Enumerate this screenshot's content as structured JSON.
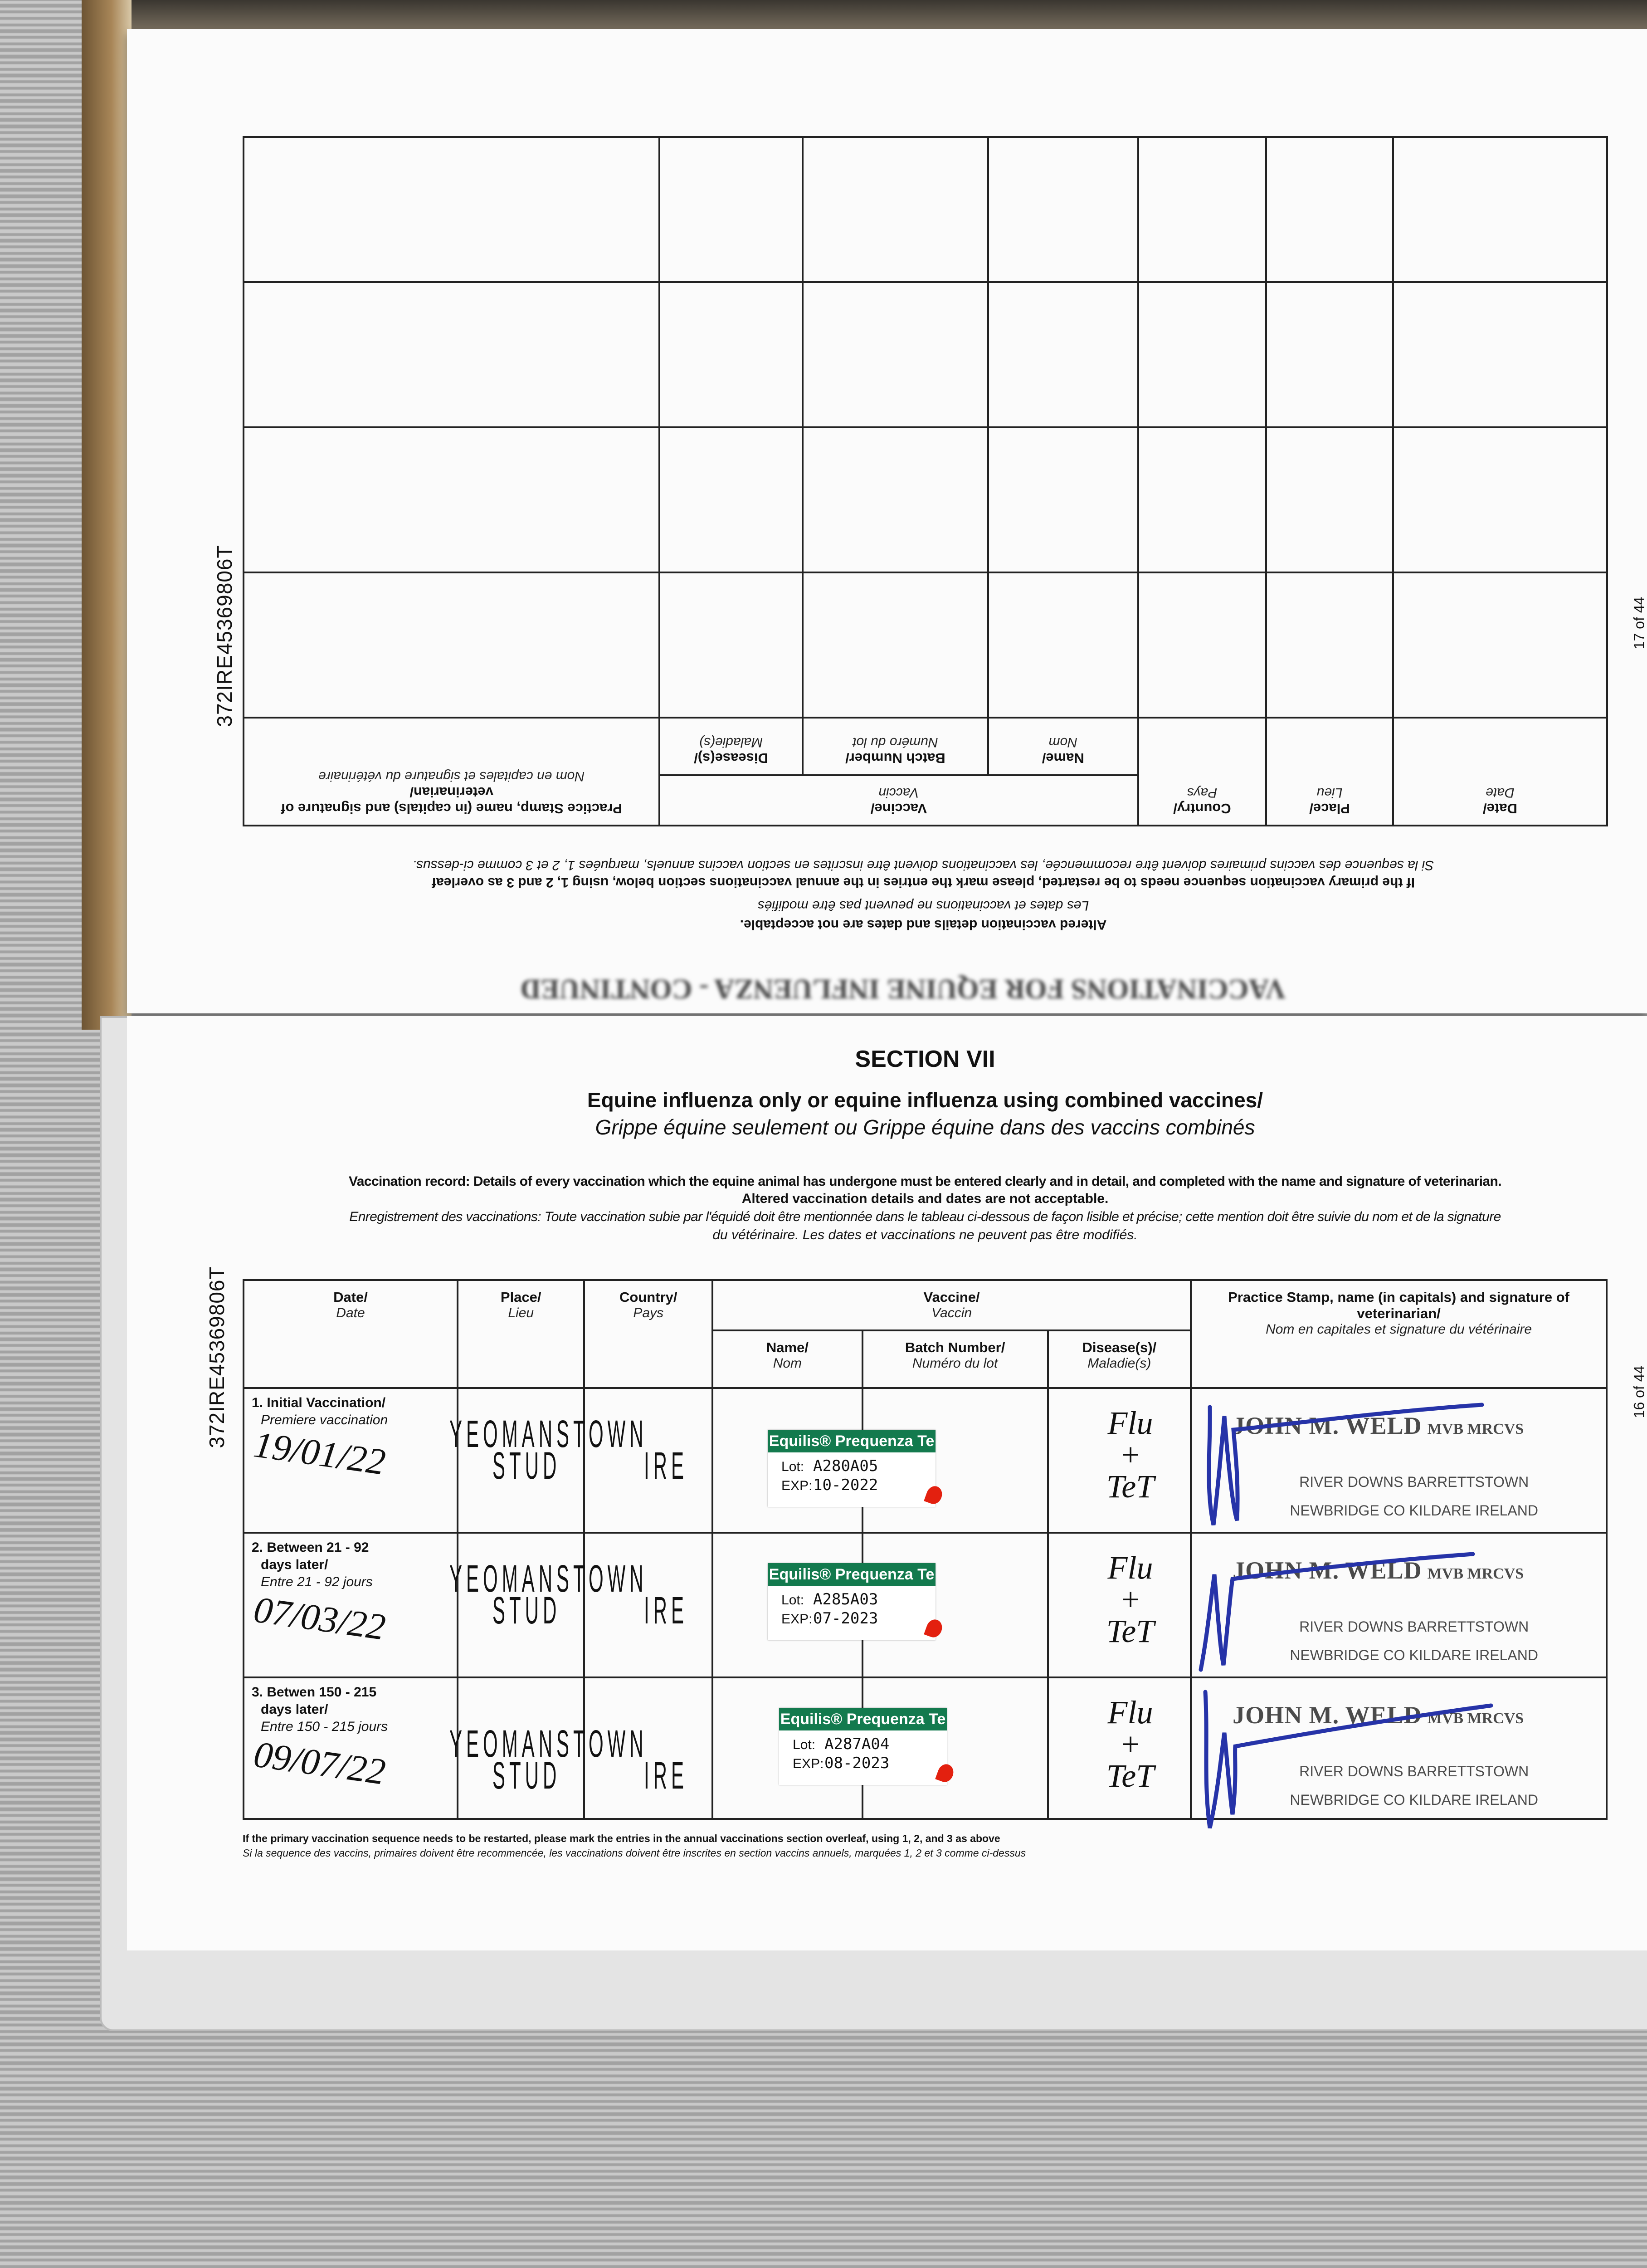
{
  "upper_page": {
    "page_id": "372IRE45369806T",
    "page_number": "17 of 44",
    "running_header": "VACCINATIONS FOR EQUINE INFLUENZA - CONTINUED",
    "notes": [
      "Altered vaccination details and dates are not acceptable.",
      "Les dates et vaccinations ne peuvent pas être modifiés",
      "If the primary vaccination sequence needs to be restarted, please mark the entries in the annual vaccinations section below, using 1, 2 and 3 as overleaf",
      "Si la sequence des vaccins primaires doivent être recommencée, les vaccinations doivent être inscrites en section vaccins annuels, marquées 1, 2 et 3 comme ci-dessus."
    ],
    "headers": {
      "date": "Date/",
      "date_fr": "Date",
      "place": "Place/",
      "place_fr": "Lieu",
      "country": "Country/",
      "country_fr": "Pays",
      "vaccine": "Vaccine/",
      "vaccine_fr": "Vaccin",
      "name": "Name/",
      "name_fr": "Nom",
      "batch": "Batch Number/",
      "batch_fr": "Numéro du lot",
      "disease": "Disease(s)/",
      "disease_fr": "Maladie(s)",
      "stamp": "Practice Stamp, name (in capitals) and signature of veterinarian/",
      "stamp_fr": "Nom en capitales et signature du vétérinaire"
    },
    "empty_rows": 4
  },
  "lower_page": {
    "page_id": "372IRE45369806T",
    "page_number": "16 of 44",
    "section": "SECTION VII",
    "title": "Equine influenza only or equine influenza using combined vaccines/",
    "subtitle": "Grippe équine seulement ou Grippe équine dans des vaccins combinés",
    "instructions": [
      "Vaccination record: Details of every vaccination which the equine animal has undergone must be entered clearly and in detail, and completed with the name and signature of veterinarian.",
      "Altered vaccination details and dates are not acceptable.",
      "Enregistrement des vaccinations: Toute vaccination subie par l'équidé doit être mentionnée dans le tableau ci-dessous de façon lisible et précise; cette mention doit être suivie du nom et de la signature",
      "du vétérinaire. Les dates et vaccinations ne peuvent pas être modifiés."
    ],
    "headers": {
      "date": "Date/",
      "date_fr": "Date",
      "place": "Place/",
      "place_fr": "Lieu",
      "country": "Country/",
      "country_fr": "Pays",
      "vaccine": "Vaccine/",
      "vaccine_fr": "Vaccin",
      "name": "Name/",
      "name_fr": "Nom",
      "batch": "Batch Number/",
      "batch_fr": "Numéro du lot",
      "disease": "Disease(s)/",
      "disease_fr": "Maladie(s)",
      "stamp": "Practice Stamp, name (in capitals) and signature of veterinarian/",
      "stamp_fr": "Nom en capitales et signature du vétérinaire"
    },
    "rows": [
      {
        "label": "1. Initial Vaccination/",
        "label2": "",
        "label_fr": "Premiere vaccination",
        "date": "19/01/22",
        "place1": "YEOMANSTOWN",
        "place2": "STUD",
        "country": "IRE",
        "brand": "Equilis® Prequenza Te",
        "lot_label": "Lot:",
        "lot": "A280A05",
        "exp_label": "EXP:",
        "exp": "10-2022",
        "disease1": "Flu",
        "disease2": "+",
        "disease3": "TeT",
        "vet_name": "JOHN M. WELD",
        "vet_quals": "MVB MRCVS",
        "vet_addr1": "RIVER DOWNS BARRETTSTOWN",
        "vet_addr2": "NEWBRIDGE CO KILDARE IRELAND"
      },
      {
        "label": "2. Between 21 - 92",
        "label2": "days later/",
        "label_fr": "Entre 21 - 92 jours",
        "date": "07/03/22",
        "place1": "YEOMANSTOWN",
        "place2": "STUD",
        "country": "IRE",
        "brand": "Equilis® Prequenza Te",
        "lot_label": "Lot:",
        "lot": "A285A03",
        "exp_label": "EXP:",
        "exp": "07-2023",
        "disease1": "Flu",
        "disease2": "+",
        "disease3": "TeT",
        "vet_name": "JOHN M. WELD",
        "vet_quals": "MVB MRCVS",
        "vet_addr1": "RIVER DOWNS BARRETTSTOWN",
        "vet_addr2": "NEWBRIDGE CO KILDARE IRELAND"
      },
      {
        "label": "3. Betwen 150 - 215",
        "label2": "days later/",
        "label_fr": "Entre 150 - 215 jours",
        "date": "09/07/22",
        "place1": "YEOMANSTOWN",
        "place2": "STUD",
        "country": "IRE",
        "brand": "Equilis® Prequenza Te",
        "lot_label": "Lot:",
        "lot": "A287A04",
        "exp_label": "EXP:",
        "exp": "08-2023",
        "disease1": "Flu",
        "disease2": "+",
        "disease3": "TeT",
        "vet_name": "JOHN M. WELD",
        "vet_quals": "MVB MRCVS",
        "vet_addr1": "RIVER DOWNS BARRETTSTOWN",
        "vet_addr2": "NEWBRIDGE CO KILDARE IRELAND"
      }
    ],
    "footnote": [
      "If the primary vaccination sequence needs to be restarted, please mark the entries in the annual vaccinations section overleaf, using 1, 2, and 3 as above",
      "Si la sequence des vaccins, primaires doivent être recommencée, les vaccinations doivent être inscrites en section vaccins annuels, marquées 1, 2 et 3 comme ci-dessus"
    ]
  },
  "colors": {
    "label_green": "#137a4e",
    "ink_blue": "#2633a8",
    "stamp_gray": "#4a4a4a",
    "drop_red": "#e3200f"
  }
}
